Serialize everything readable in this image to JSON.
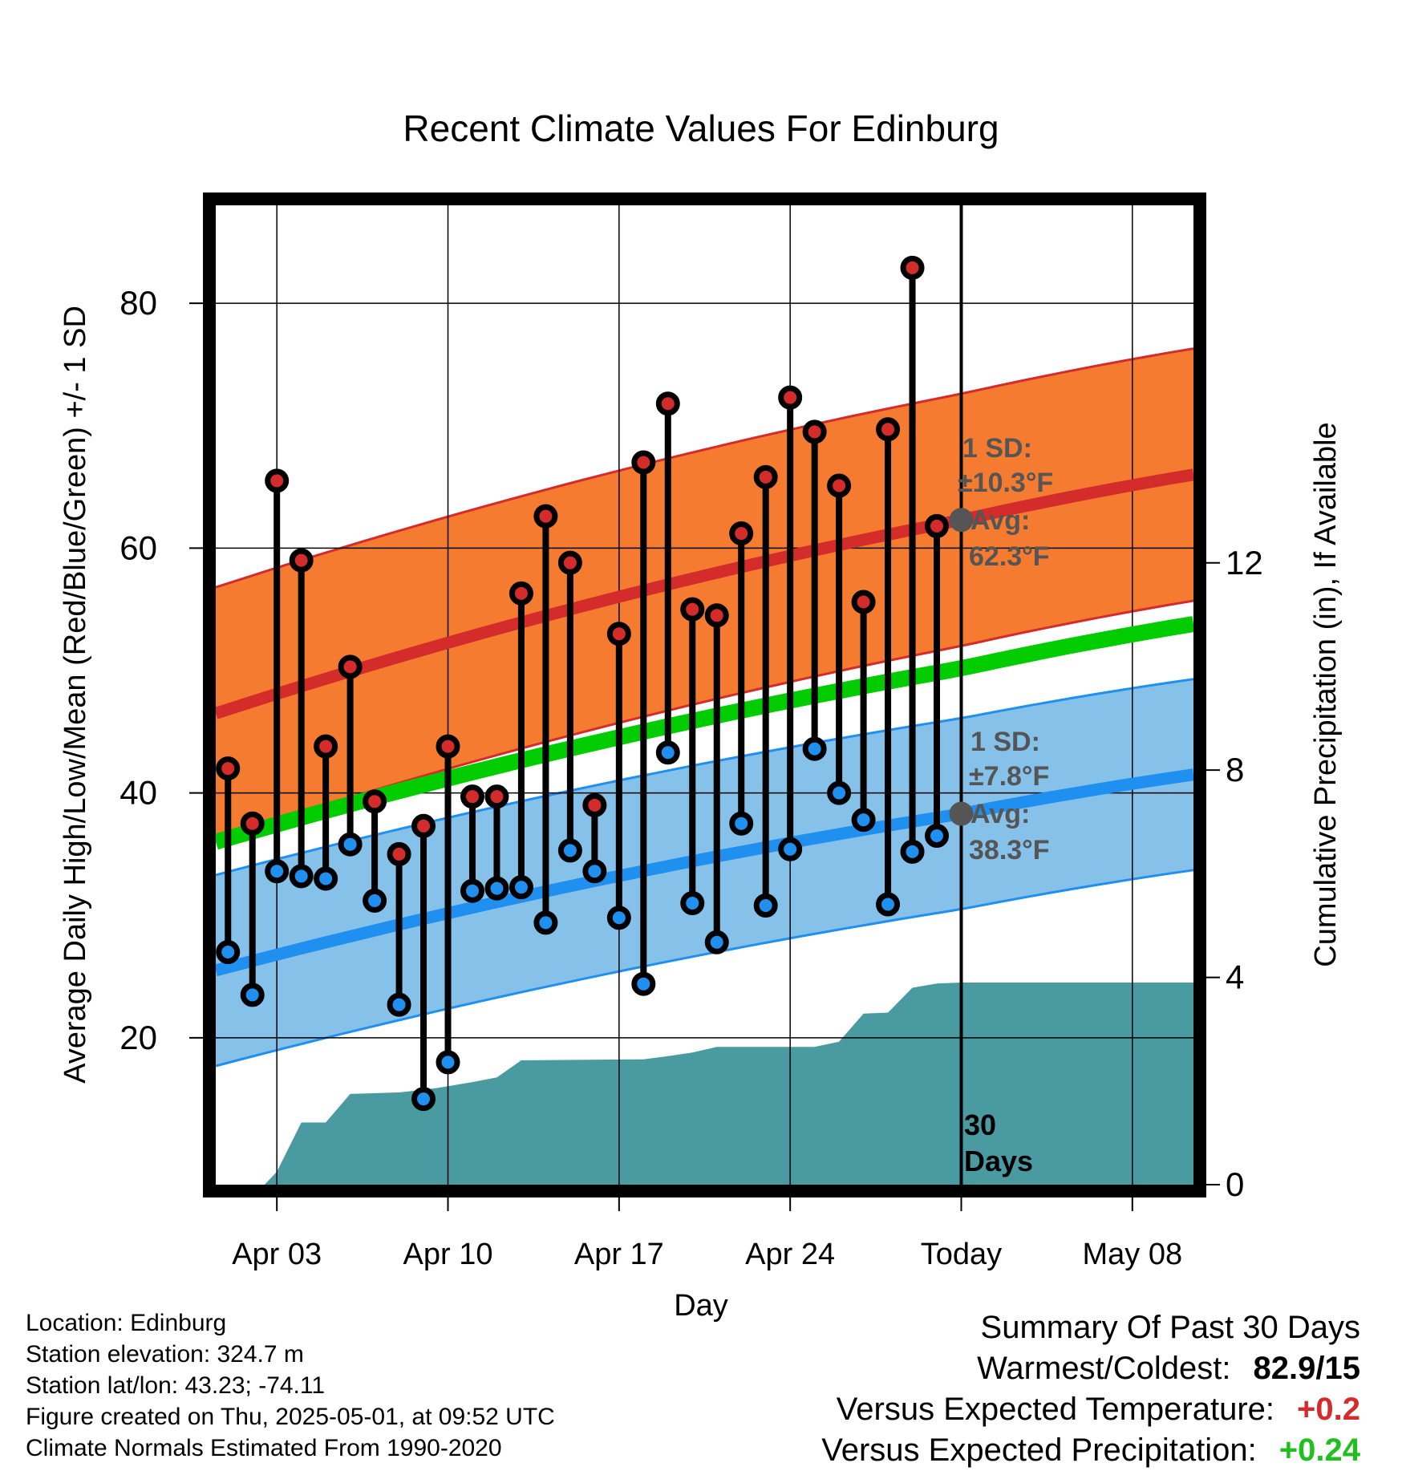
{
  "chart_data": {
    "type": "line",
    "title": "Recent Climate Values For Edinburg",
    "xlabel": "Day",
    "ylabel": "Average Daily High/Low/Mean (Red/Blue/Green) +/- 1 SD",
    "y2label": "Cumulative Precipitation (in), If Available",
    "x_tick_labels": [
      "Apr 03",
      "Apr 10",
      "Apr 17",
      "Apr 24",
      "Today",
      "May 08"
    ],
    "x_tick_days": [
      2,
      9,
      16,
      23,
      30,
      37
    ],
    "x_range_days": [
      -0.5,
      39.5
    ],
    "y_ticks": [
      20,
      40,
      60,
      80
    ],
    "ylim": [
      8,
      88
    ],
    "y2_ticks": [
      0,
      4,
      8,
      12
    ],
    "y2lim": [
      0,
      18.9
    ],
    "grid": true,
    "today_day": 30,
    "today_label_line1": "30",
    "today_label_line2": "Days",
    "days": [
      0,
      1,
      2,
      3,
      4,
      5,
      6,
      7,
      8,
      9,
      10,
      11,
      12,
      13,
      14,
      15,
      16,
      17,
      18,
      19,
      20,
      21,
      22,
      23,
      24,
      25,
      26,
      27,
      28,
      29
    ],
    "highs": [
      42,
      37.5,
      65.5,
      59,
      43.8,
      50.3,
      39.3,
      35,
      37.3,
      43.8,
      39.7,
      39.7,
      56.3,
      62.6,
      58.8,
      39,
      53,
      67,
      71.8,
      55,
      54.5,
      61.2,
      65.8,
      72.3,
      69.5,
      65.1,
      55.6,
      69.7,
      82.9,
      61.8
    ],
    "lows": [
      27,
      23.5,
      33.6,
      33.2,
      33,
      35.8,
      31.2,
      22.7,
      15,
      18,
      32,
      32.2,
      32.3,
      29.4,
      35.3,
      33.6,
      29.8,
      24.4,
      43.3,
      31,
      27.8,
      37.5,
      30.8,
      35.4,
      43.6,
      40,
      37.8,
      30.9,
      35.2,
      36.5
    ],
    "normal_high": {
      "start": 46.5,
      "today": 62.3,
      "end": 66
    },
    "normal_high_sd": 10.3,
    "normal_low": {
      "start": 25.5,
      "today": 38.3,
      "end": 41.5
    },
    "normal_low_sd": 7.8,
    "normal_mean": {
      "start": 36,
      "end": 53.8
    },
    "precip_days": [
      0.5,
      1.5,
      2,
      3,
      3.5,
      4,
      5,
      7,
      8.5,
      9,
      10,
      11,
      12,
      17,
      18,
      19,
      20,
      24,
      25,
      26,
      27,
      28,
      29,
      30,
      39.5
    ],
    "precip_cum": [
      0,
      0,
      0.25,
      1.2,
      1.2,
      1.2,
      1.75,
      1.78,
      1.86,
      1.9,
      1.98,
      2.07,
      2.4,
      2.42,
      2.48,
      2.55,
      2.66,
      2.66,
      2.76,
      3.3,
      3.32,
      3.8,
      3.88,
      3.9,
      3.9
    ],
    "annotations": {
      "high_sd_label": "1 SD:",
      "high_sd_value": "±10.3°F",
      "high_avg_label": "Avg:",
      "high_avg_value": "62.3°F",
      "low_sd_label": "1 SD:",
      "low_sd_value": "±7.8°F",
      "low_avg_label": "Avg:",
      "low_avg_value": "38.3°F"
    },
    "colors": {
      "high_band": "#f47b30",
      "high_line": "#d42b2b",
      "low_band": "#85c1e8",
      "low_line": "#1f8ff0",
      "mean_line": "#00cc00",
      "precip": "#4a9aa2",
      "high_marker": "#d42b2b",
      "low_marker": "#1f8ff0",
      "annotation": "#555555"
    }
  },
  "info": {
    "location": "Location: Edinburg",
    "elevation": "Station elevation: 324.7 m",
    "latlon": "Station lat/lon: 43.23; -74.11",
    "created": "Figure created on Thu, 2025-05-01, at 09:52 UTC",
    "normals": "Climate Normals Estimated From 1990-2020"
  },
  "summary": {
    "title": "Summary Of Past 30 Days",
    "warmest_coldest_label": "Warmest/Coldest:",
    "warmest_coldest_value": "82.9/15",
    "temp_label": "Versus Expected Temperature:",
    "temp_value": "+0.2",
    "temp_color": "#d42b2b",
    "precip_label": "Versus Expected Precipitation:",
    "precip_value": "+0.24",
    "precip_color": "#1fbf1f"
  }
}
